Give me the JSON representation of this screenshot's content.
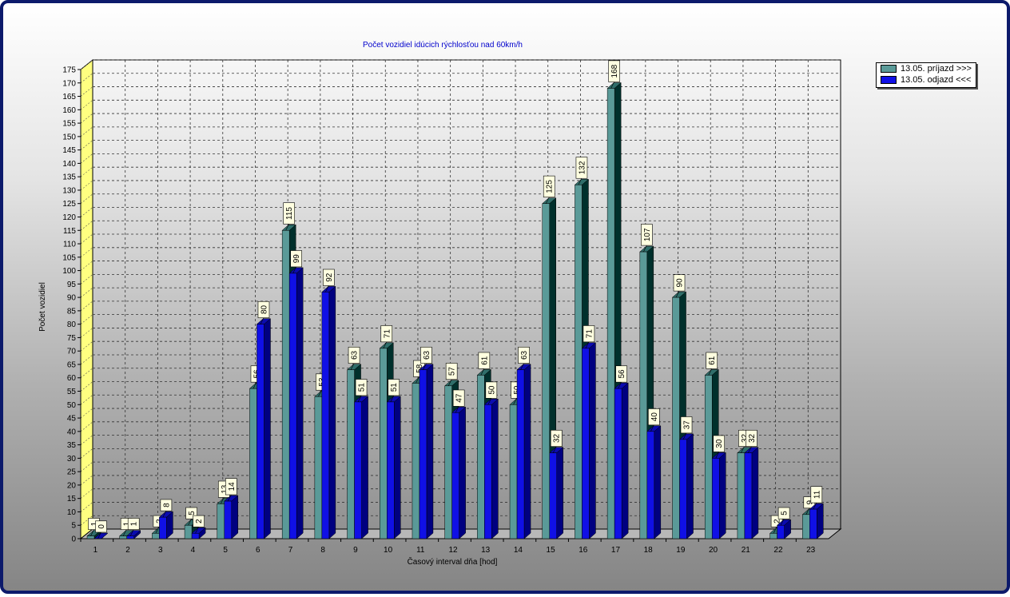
{
  "chart_data": {
    "type": "bar",
    "title": "Počet vozidiel idúcich rýchlosťou nad 60km/h",
    "xlabel": "Časový interval dňa [hod]",
    "ylabel": "Počet vozidiel",
    "ylim": [
      0,
      175
    ],
    "y_tick_step": 5,
    "grid": true,
    "legend_position": "top-right",
    "categories": [
      "1",
      "2",
      "3",
      "4",
      "5",
      "6",
      "7",
      "8",
      "9",
      "10",
      "11",
      "12",
      "13",
      "14",
      "15",
      "16",
      "17",
      "18",
      "19",
      "20",
      "21",
      "22",
      "23"
    ],
    "series": [
      {
        "name": "13.05.  príjazd >>>",
        "color": "#5a9a98",
        "side_color": "#00302c",
        "values": [
          1,
          1,
          2,
          5,
          13,
          56,
          115,
          53,
          63,
          71,
          58,
          57,
          61,
          50,
          125,
          132,
          168,
          107,
          90,
          61,
          32,
          2,
          9
        ]
      },
      {
        "name": "13.05.  odjazd <<<",
        "color": "#1010e6",
        "side_color": "#000080",
        "values": [
          0,
          1,
          8,
          2,
          14,
          80,
          99,
          92,
          51,
          51,
          63,
          47,
          50,
          63,
          32,
          71,
          56,
          40,
          37,
          30,
          32,
          5,
          11
        ]
      }
    ]
  }
}
